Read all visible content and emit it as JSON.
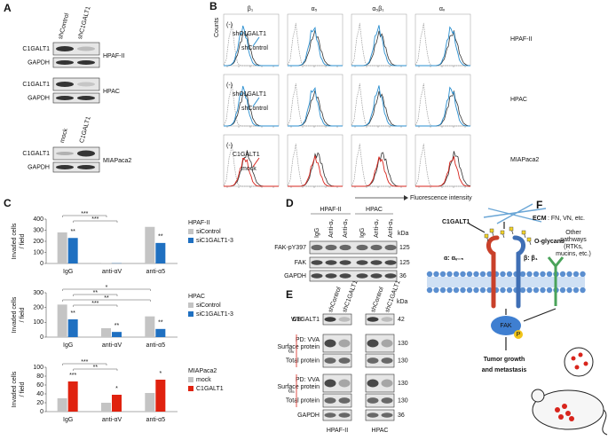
{
  "panel_labels": [
    "A",
    "B",
    "C",
    "D",
    "E",
    "F"
  ],
  "panel_a": {
    "lanes_top": [
      "shControl",
      "shC1GALT1"
    ],
    "blots_top": [
      {
        "rows": [
          "C1GALT1",
          "GAPDH"
        ],
        "cell": "HPAF-II"
      },
      {
        "rows": [
          "C1GALT1",
          "GAPDH"
        ],
        "cell": "HPAC"
      }
    ],
    "lanes_bottom": [
      "mock",
      "C1GALT1"
    ],
    "blot_bottom": {
      "rows": [
        "C1GALT1",
        "GAPDH"
      ],
      "cell": "MIAPaca2"
    }
  },
  "panel_b": {
    "columns": [
      "β₁",
      "α₅",
      "α₅β₁",
      "αᵥ"
    ],
    "rows": [
      {
        "cell": "HPAF-II",
        "labels": [
          "(-)",
          "shC1GALT1",
          "shControl"
        ]
      },
      {
        "cell": "HPAC",
        "labels": [
          "(-)",
          "shC1GALT1",
          "shControl"
        ]
      },
      {
        "cell": "MIAPaca2",
        "labels": [
          "(-)",
          "C1GALT1",
          "mock"
        ]
      }
    ],
    "y_label": "Counts",
    "x_label": "Fluorescence intensity"
  },
  "chart_data": [
    {
      "type": "bar",
      "legend_title": "HPAF-II",
      "y_label": [
        "Invaded cells",
        "/ field"
      ],
      "categories": [
        "IgG",
        "anti-αV",
        "anti-α5"
      ],
      "series": [
        {
          "name": "siControl",
          "color": "#c4c4c4",
          "values": [
            280,
            3,
            330
          ],
          "significance": [
            null,
            null,
            null
          ]
        },
        {
          "name": "siC1GALT1-3",
          "color": "#1f70c1",
          "values": [
            230,
            2,
            185
          ],
          "significance": [
            "**",
            null,
            "**"
          ]
        }
      ],
      "brackets": [
        "***",
        "***"
      ],
      "ylim": [
        0,
        400
      ],
      "yticks": [
        0,
        100,
        200,
        300,
        400
      ]
    },
    {
      "type": "bar",
      "legend_title": "HPAC",
      "y_label": [
        "Invaded cells",
        "/ field"
      ],
      "categories": [
        "IgG",
        "anti-αV",
        "anti-α5"
      ],
      "series": [
        {
          "name": "siControl",
          "color": "#c4c4c4",
          "values": [
            220,
            60,
            140
          ],
          "significance": [
            null,
            null,
            null
          ]
        },
        {
          "name": "siC1GALT1-3",
          "color": "#1f70c1",
          "values": [
            120,
            35,
            55
          ],
          "significance": [
            "**",
            "**",
            "**"
          ]
        }
      ],
      "brackets": [
        "*",
        "**",
        "**",
        "***"
      ],
      "ylim": [
        0,
        300
      ],
      "yticks": [
        0,
        100,
        200,
        300
      ]
    },
    {
      "type": "bar",
      "legend_title": "MIAPaca2",
      "y_label": [
        "Invaded cells",
        "/ field"
      ],
      "categories": [
        "IgG",
        "anti-αV",
        "anti-α5"
      ],
      "series": [
        {
          "name": "mock",
          "color": "#c4c4c4",
          "values": [
            30,
            20,
            42
          ],
          "significance": [
            null,
            null,
            null
          ]
        },
        {
          "name": "C1GALT1",
          "color": "#e0220f",
          "values": [
            68,
            38,
            72
          ],
          "significance": [
            "***",
            "*",
            "*"
          ]
        }
      ],
      "brackets": [
        "***",
        "**"
      ],
      "ylim": [
        0,
        100
      ],
      "yticks": [
        0,
        20,
        40,
        60,
        80,
        100
      ]
    }
  ],
  "panel_d": {
    "groups": [
      "HPAF-II",
      "HPAC"
    ],
    "lanes": [
      "IgG",
      "Anti-αᵥ",
      "Anti-α₅",
      "IgG",
      "Anti-αᵥ",
      "Anti-α₅"
    ],
    "unit": "kDa",
    "rows": [
      {
        "label": "FAK-pY397",
        "kda": 125
      },
      {
        "label": "FAK",
        "kda": 125
      },
      {
        "label": "GAPDH",
        "kda": 36
      }
    ]
  },
  "panel_e": {
    "wb": "WB:",
    "lanes": [
      "shControl",
      "shC1GALT1",
      "shControl",
      "shC1GALT1"
    ],
    "unit": "kDa",
    "rows": [
      {
        "label": [
          "C1GALT1"
        ],
        "kda": 42
      },
      {
        "label": [
          "PD: VVA",
          "Surface protein"
        ],
        "kda": 130
      },
      {
        "label": [
          "Total protein"
        ],
        "kda": 130
      },
      {
        "label": [
          "PD: VVA",
          "Surface protein"
        ],
        "kda": 130
      },
      {
        "label": [
          "Total protein"
        ],
        "kda": 130
      },
      {
        "label": [
          "GAPDH"
        ],
        "kda": 36
      }
    ],
    "groups": [
      "αᵥ",
      "α₅"
    ],
    "cells": [
      "HPAF-II",
      "HPAC"
    ]
  },
  "panel_f": {
    "enzyme": "C1GALT1",
    "ecm": "ECM",
    "ecm_list": ": FN, VN, etc.",
    "glycans": "O-glycans",
    "alpha": "α: αᵥ₋₅",
    "beta": "β: β₁",
    "other": [
      "Other",
      "pathways",
      "(RTKs,",
      "mucins, etc.)"
    ],
    "fak": "FAK",
    "p": "P",
    "outcome": [
      "Tumor growth",
      "and metastasis"
    ]
  }
}
